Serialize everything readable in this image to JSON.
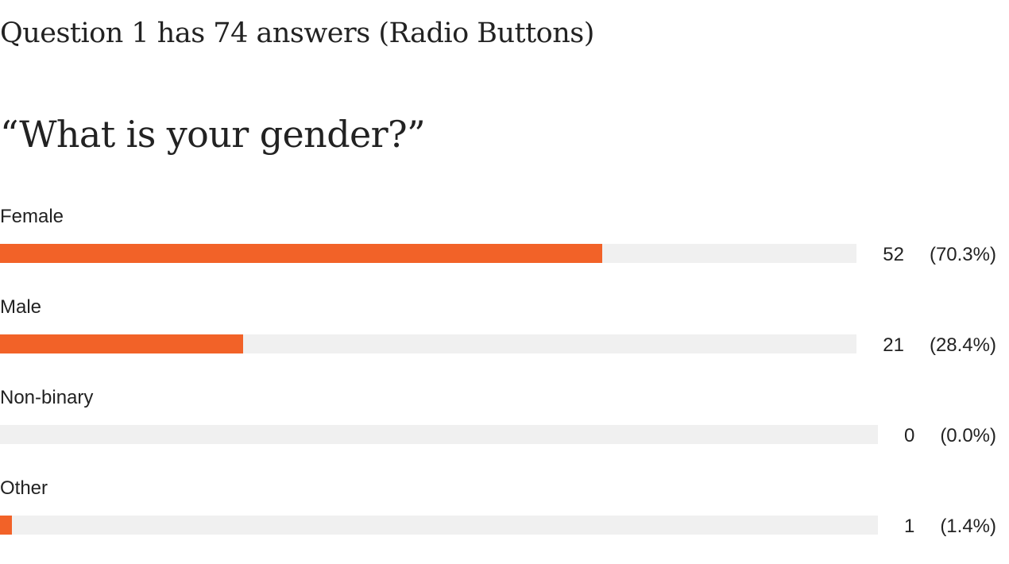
{
  "summary": {
    "text": "Question 1 has 74 answers (Radio Buttons)"
  },
  "question": {
    "text": "“What is your gender?”"
  },
  "colors": {
    "bar": "#f26228",
    "track": "#f0f0f0",
    "text": "#222222"
  },
  "chart_data": {
    "type": "bar",
    "orientation": "horizontal",
    "title": "“What is your gender?”",
    "categories": [
      "Female",
      "Male",
      "Non-binary",
      "Other"
    ],
    "values": [
      52,
      21,
      0,
      1
    ],
    "percent_labels": [
      "(70.3%)",
      "(28.4%)",
      "(0.0%)",
      "(1.4%)"
    ],
    "xlim": [
      0,
      74
    ],
    "grid": false
  }
}
